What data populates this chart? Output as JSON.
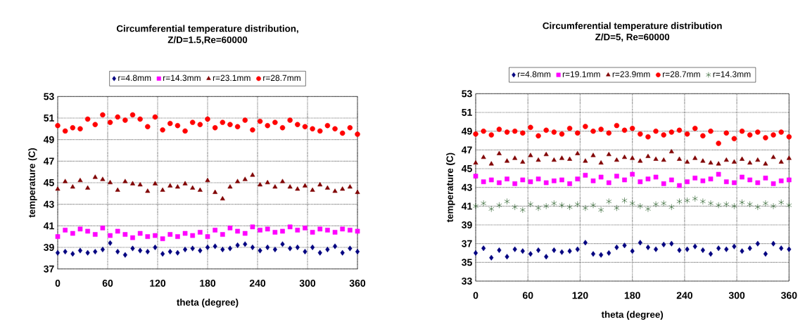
{
  "chart_data": [
    {
      "type": "scatter",
      "title": "Circumferential temperature distribution,",
      "subtitle": "Z/D=1.5,Re=60000",
      "xlabel": "theta (degree)",
      "ylabel": "temperature (C)",
      "x": [
        0,
        9,
        18,
        27,
        36,
        45,
        54,
        63,
        72,
        81,
        90,
        99,
        108,
        117,
        126,
        135,
        144,
        153,
        162,
        171,
        180,
        189,
        198,
        207,
        216,
        225,
        234,
        243,
        252,
        261,
        270,
        279,
        288,
        297,
        306,
        315,
        324,
        333,
        342,
        351,
        360
      ],
      "xlim": [
        0,
        360
      ],
      "xticks": [
        0,
        60,
        120,
        180,
        240,
        300,
        360
      ],
      "ylim": [
        37,
        53
      ],
      "yticks": [
        37,
        39,
        41,
        43,
        45,
        47,
        49,
        51,
        53
      ],
      "grid": true,
      "legend": "top",
      "series": [
        {
          "name": "r=4.8mm",
          "color": "#000080",
          "marker": "diamond",
          "values": [
            38.5,
            38.6,
            38.4,
            38.7,
            38.5,
            38.6,
            38.8,
            39.4,
            38.6,
            38.3,
            38.9,
            38.7,
            38.6,
            39.0,
            38.4,
            38.6,
            38.5,
            38.8,
            38.9,
            38.7,
            39.0,
            39.1,
            38.8,
            38.9,
            39.2,
            39.3,
            39.0,
            38.7,
            39.0,
            38.8,
            39.3,
            38.9,
            39.0,
            38.6,
            39.0,
            38.5,
            38.8,
            39.1,
            38.5,
            38.9,
            38.6
          ]
        },
        {
          "name": "r=14.3mm",
          "color": "#ff00ff",
          "marker": "square",
          "values": [
            40.0,
            40.6,
            40.3,
            40.7,
            40.5,
            40.2,
            40.8,
            40.1,
            40.5,
            40.2,
            39.9,
            40.3,
            40.0,
            40.1,
            39.8,
            40.2,
            40.0,
            40.3,
            40.1,
            40.4,
            40.0,
            40.6,
            40.2,
            40.8,
            40.5,
            40.3,
            40.9,
            40.6,
            40.7,
            40.4,
            40.5,
            40.9,
            40.6,
            40.8,
            40.4,
            40.7,
            40.6,
            40.4,
            40.7,
            40.6,
            40.5
          ]
        },
        {
          "name": "r=23.1mm",
          "color": "#800000",
          "marker": "triangle",
          "values": [
            44.4,
            45.1,
            44.6,
            45.2,
            44.5,
            45.5,
            45.3,
            45.0,
            44.3,
            45.1,
            44.9,
            44.8,
            44.2,
            44.9,
            44.3,
            44.7,
            44.6,
            44.9,
            44.5,
            44.3,
            45.2,
            44.1,
            43.5,
            44.6,
            45.1,
            45.3,
            45.7,
            44.8,
            45.0,
            44.6,
            45.1,
            44.6,
            44.4,
            44.7,
            44.3,
            44.8,
            44.5,
            44.2,
            44.4,
            44.6,
            44.1
          ]
        },
        {
          "name": "r=28.7mm",
          "color": "#ff0000",
          "marker": "circle",
          "values": [
            50.3,
            49.8,
            50.1,
            50.0,
            50.9,
            50.4,
            51.3,
            50.6,
            51.1,
            50.8,
            51.3,
            50.9,
            50.2,
            51.1,
            49.9,
            50.5,
            50.3,
            49.8,
            50.6,
            50.4,
            50.9,
            50.1,
            50.6,
            50.4,
            50.2,
            50.8,
            49.9,
            50.7,
            50.3,
            50.6,
            50.1,
            50.8,
            50.4,
            50.2,
            50.0,
            49.8,
            50.3,
            50.0,
            49.6,
            50.1,
            49.5
          ]
        }
      ]
    },
    {
      "type": "scatter",
      "title": "Circumferential  temperature distribution",
      "subtitle": "Z/D=5, Re=60000",
      "xlabel": "theta (degree)",
      "ylabel": "temperature (C)",
      "x": [
        0,
        9,
        18,
        27,
        36,
        45,
        54,
        63,
        72,
        81,
        90,
        99,
        108,
        117,
        126,
        135,
        144,
        153,
        162,
        171,
        180,
        189,
        198,
        207,
        216,
        225,
        234,
        243,
        252,
        261,
        270,
        279,
        288,
        297,
        306,
        315,
        324,
        333,
        342,
        351,
        360
      ],
      "xlim": [
        0,
        360
      ],
      "xticks": [
        0,
        60,
        120,
        180,
        240,
        300,
        360
      ],
      "ylim": [
        33,
        53
      ],
      "yticks": [
        33,
        35,
        37,
        39,
        41,
        43,
        45,
        47,
        49,
        51,
        53
      ],
      "grid": true,
      "legend": "top",
      "series": [
        {
          "name": "r=4.8mm",
          "color": "#000080",
          "marker": "diamond",
          "values": [
            36.0,
            36.5,
            35.5,
            36.3,
            35.6,
            36.4,
            36.2,
            35.9,
            36.3,
            35.6,
            36.3,
            36.1,
            36.2,
            36.4,
            37.1,
            35.9,
            35.8,
            36.0,
            36.6,
            36.8,
            36.2,
            37.1,
            36.6,
            36.4,
            36.9,
            37.0,
            36.3,
            36.4,
            36.7,
            36.3,
            35.9,
            36.5,
            36.4,
            36.7,
            36.2,
            36.5,
            37.0,
            35.9,
            37.0,
            36.5,
            36.4
          ]
        },
        {
          "name": "r=19.1mm",
          "color": "#ff00ff",
          "marker": "square",
          "values": [
            44.2,
            43.6,
            43.8,
            43.5,
            43.9,
            43.4,
            43.8,
            43.6,
            43.9,
            43.5,
            43.7,
            43.8,
            43.4,
            43.9,
            44.3,
            43.7,
            44.1,
            43.5,
            44.2,
            43.8,
            44.4,
            43.6,
            43.9,
            44.1,
            43.4,
            43.8,
            43.2,
            43.6,
            44.0,
            43.7,
            43.9,
            44.4,
            43.6,
            43.5,
            44.1,
            43.8,
            43.5,
            44.0,
            43.4,
            43.7,
            43.8
          ]
        },
        {
          "name": "r=23.9mm",
          "color": "#800000",
          "marker": "triangle",
          "values": [
            45.6,
            46.2,
            45.5,
            46.6,
            45.8,
            46.1,
            45.7,
            46.4,
            45.9,
            46.5,
            45.9,
            46.1,
            46.0,
            46.6,
            45.8,
            46.4,
            45.6,
            46.5,
            45.9,
            46.2,
            46.1,
            45.8,
            46.3,
            46.0,
            45.9,
            46.8,
            46.0,
            45.7,
            46.1,
            45.8,
            45.6,
            45.5,
            45.9,
            45.7,
            46.0,
            45.6,
            45.9,
            45.5,
            46.2,
            45.7,
            46.1
          ]
        },
        {
          "name": "r=28.7mm",
          "color": "#ff0000",
          "marker": "circle",
          "values": [
            48.7,
            49.0,
            48.6,
            49.2,
            48.9,
            49.0,
            48.8,
            49.4,
            48.5,
            49.1,
            48.9,
            48.7,
            49.3,
            48.8,
            49.5,
            49.0,
            49.2,
            48.8,
            49.6,
            49.1,
            49.3,
            48.7,
            48.4,
            49.0,
            48.6,
            48.9,
            49.1,
            48.7,
            49.3,
            48.5,
            49.0,
            47.7,
            48.8,
            48.2,
            49.0,
            48.6,
            48.9,
            48.3,
            48.6,
            48.9,
            48.4
          ]
        },
        {
          "name": "r=14.3mm",
          "color": "#004000",
          "marker": "cross",
          "values": [
            41.0,
            41.3,
            40.7,
            41.1,
            41.5,
            40.9,
            40.6,
            41.2,
            40.8,
            41.0,
            41.3,
            41.1,
            40.9,
            41.2,
            40.8,
            41.1,
            40.6,
            41.5,
            40.8,
            41.6,
            41.3,
            41.0,
            40.7,
            41.2,
            41.3,
            40.9,
            41.5,
            41.6,
            41.8,
            41.5,
            41.3,
            41.1,
            41.2,
            41.0,
            41.4,
            41.2,
            40.9,
            41.3,
            41.0,
            41.4,
            41.1
          ]
        }
      ]
    }
  ]
}
